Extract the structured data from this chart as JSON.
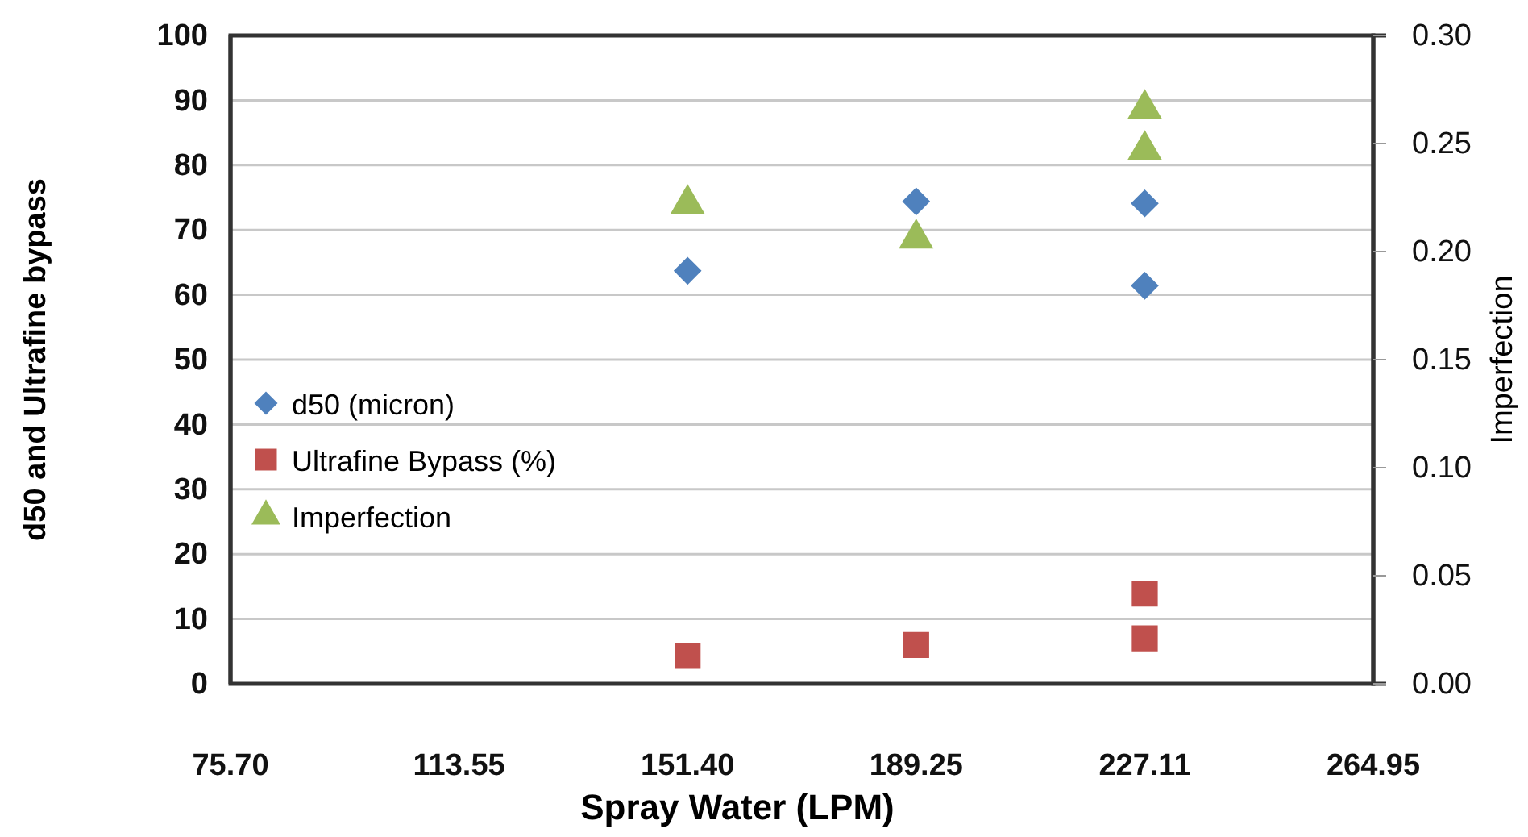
{
  "chart_data": {
    "type": "scatter",
    "xlabel": "Spray Water (LPM)",
    "ylabel": "d50 and Ultrafine bypass",
    "y2label": "Imperfection",
    "xlim": [
      75.7,
      264.95
    ],
    "xticks": [
      {
        "value": 75.7,
        "label": "75.70"
      },
      113.55,
      {
        "value": 151.4,
        "label": "151.40"
      },
      189.25,
      227.11,
      264.95
    ],
    "ylim": [
      0,
      100
    ],
    "yticks": [
      0,
      10,
      20,
      30,
      40,
      50,
      60,
      70,
      80,
      90,
      100
    ],
    "y2lim": [
      0,
      0.3
    ],
    "y2ticks": [
      {
        "value": 0,
        "label": "0.00"
      },
      0.05,
      {
        "value": 0.1,
        "label": "0.10"
      },
      0.15,
      {
        "value": 0.2,
        "label": "0.20"
      },
      0.25,
      {
        "value": 0.3,
        "label": "0.30"
      }
    ],
    "grid": "y",
    "legend": "left",
    "series": [
      {
        "name": "d50 (micron)",
        "color": "#4f81bd",
        "marker": "diamond",
        "x": [
          151.4,
          189.25,
          227.11,
          227.11
        ],
        "values": [
          63.7,
          74.4,
          74.1,
          61.4
        ]
      },
      {
        "name": "Ultrafine Bypass (%)",
        "color": "#c0504d",
        "marker": "square",
        "x": [
          151.4,
          189.25,
          227.11,
          227.11
        ],
        "values": [
          4.3,
          6.0,
          13.9,
          7.0
        ]
      },
      {
        "name": "Imperfection",
        "color": "#9bbb59",
        "marker": "triangle",
        "axis": "y2",
        "x": [
          151.4,
          189.25,
          227.11,
          227.11
        ],
        "values": [
          0.222,
          0.206,
          0.266,
          0.247
        ]
      }
    ]
  }
}
